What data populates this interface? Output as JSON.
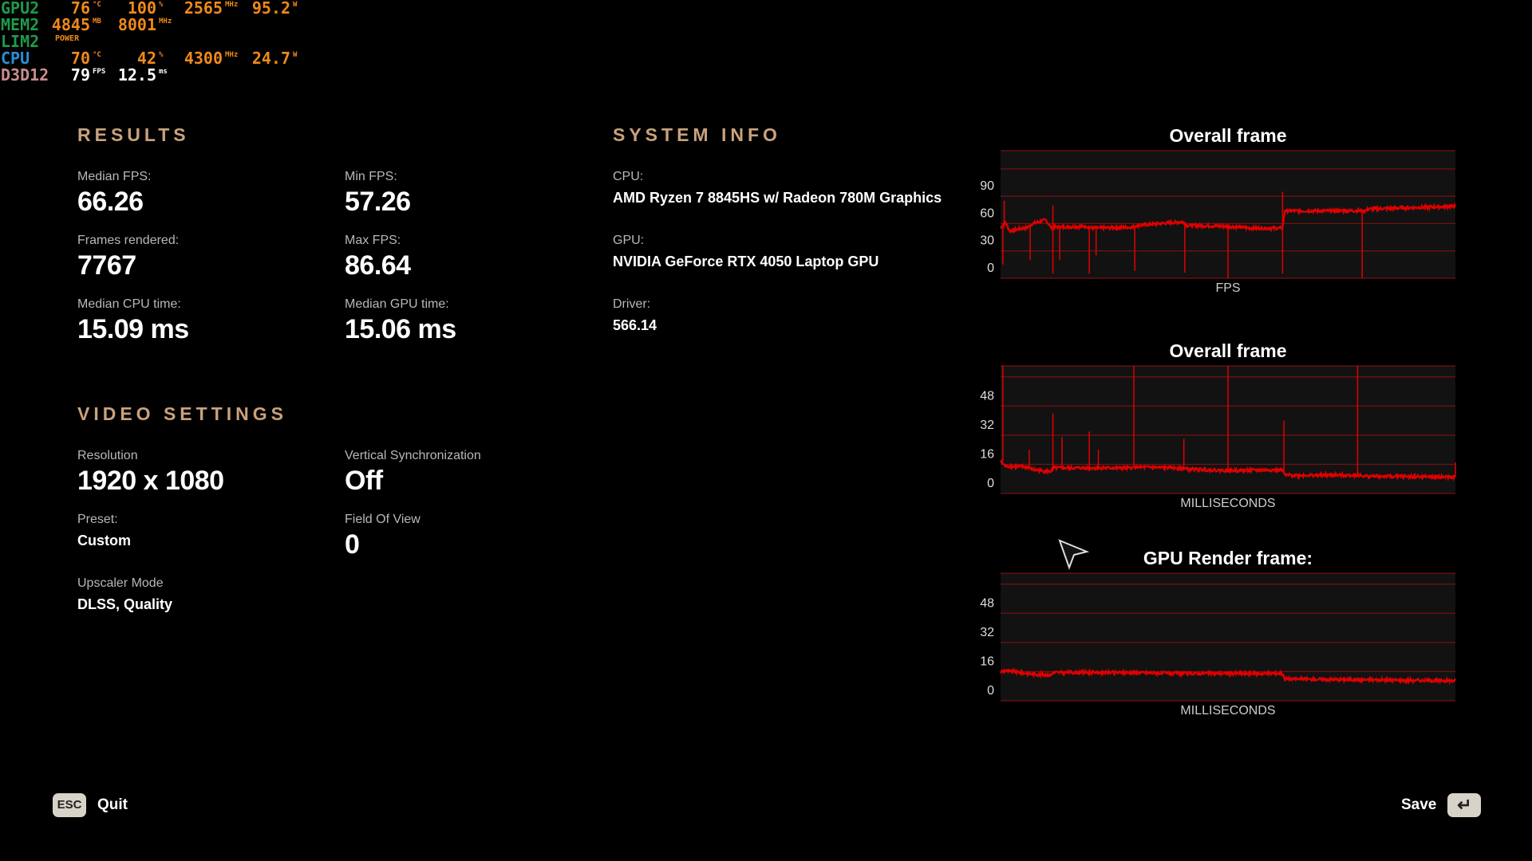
{
  "overlay": {
    "rows": [
      {
        "label": "GPU2",
        "values": [
          {
            "v": "76",
            "u": "°C"
          },
          {
            "v": "100",
            "u": "%"
          },
          {
            "v": "2565",
            "u": "MHz"
          },
          {
            "v": "95.2",
            "u": "W"
          }
        ]
      },
      {
        "label": "MEM2",
        "values": [
          {
            "v": "4845",
            "u": "MB"
          },
          {
            "v": "8001",
            "u": "MHz"
          }
        ]
      },
      {
        "label": "LIM2",
        "values": [
          {
            "v": "POWER",
            "u": ""
          }
        ]
      },
      {
        "label": "CPU",
        "values": [
          {
            "v": "70",
            "u": "°C"
          },
          {
            "v": "42",
            "u": "%"
          },
          {
            "v": "4300",
            "u": "MHz"
          },
          {
            "v": "24.7",
            "u": "W"
          }
        ]
      },
      {
        "label": "D3D12",
        "values": [
          {
            "v": "79",
            "u": "FPS"
          },
          {
            "v": "12.5",
            "u": "ms"
          }
        ]
      }
    ]
  },
  "results": {
    "heading": "RESULTS",
    "median_fps": {
      "label": "Median FPS:",
      "value": "66.26"
    },
    "min_fps": {
      "label": "Min FPS:",
      "value": "57.26"
    },
    "frames_rendered": {
      "label": "Frames rendered:",
      "value": "7767"
    },
    "max_fps": {
      "label": "Max FPS:",
      "value": "86.64"
    },
    "median_cpu": {
      "label": "Median CPU time:",
      "value": "15.09 ms"
    },
    "median_gpu": {
      "label": "Median GPU time:",
      "value": "15.06 ms"
    }
  },
  "system_info": {
    "heading": "SYSTEM INFO",
    "cpu": {
      "label": "CPU:",
      "value": "AMD Ryzen 7 8845HS w/ Radeon 780M Graphics"
    },
    "gpu": {
      "label": "GPU:",
      "value": "NVIDIA GeForce RTX 4050 Laptop GPU"
    },
    "driver": {
      "label": "Driver:",
      "value": "566.14"
    }
  },
  "video_settings": {
    "heading": "VIDEO SETTINGS",
    "resolution": {
      "label": "Resolution",
      "value": "1920 x 1080"
    },
    "vsync": {
      "label": "Vertical Synchronization",
      "value": "Off"
    },
    "preset": {
      "label": "Preset:",
      "value": "Custom"
    },
    "fov": {
      "label": "Field Of View",
      "value": "0"
    },
    "upscaler": {
      "label": "Upscaler Mode",
      "value": "DLSS, Quality"
    }
  },
  "footer": {
    "quit_key": "ESC",
    "quit_label": "Quit",
    "save_label": "Save",
    "save_key": "↵"
  },
  "chart_data": [
    {
      "type": "line",
      "title": "Overall frame",
      "xlabel": "FPS",
      "ylabel": "",
      "ylim": [
        0,
        140
      ],
      "yticks": [
        0,
        30,
        60,
        90
      ],
      "gridlines": [
        0,
        30,
        60,
        90,
        120
      ],
      "grid": true,
      "color": "#e00000",
      "trend": [
        [
          0,
          55
        ],
        [
          1,
          62
        ],
        [
          2,
          52
        ],
        [
          6,
          56
        ],
        [
          7,
          60
        ],
        [
          10,
          64
        ],
        [
          11,
          56
        ],
        [
          19,
          57
        ],
        [
          20,
          55
        ],
        [
          29,
          56
        ],
        [
          30,
          58
        ],
        [
          40,
          62
        ],
        [
          41,
          58
        ],
        [
          50,
          57
        ],
        [
          55,
          55
        ],
        [
          62,
          55
        ],
        [
          62.5,
          74
        ],
        [
          80,
          74
        ],
        [
          81,
          76
        ],
        [
          100,
          79
        ]
      ],
      "spikes": [
        [
          0.5,
          15
        ],
        [
          6.5,
          20
        ],
        [
          11.5,
          5
        ],
        [
          13,
          20
        ],
        [
          19.5,
          5
        ],
        [
          21,
          25
        ],
        [
          29.5,
          8
        ],
        [
          40.5,
          6
        ],
        [
          50,
          0
        ],
        [
          62,
          5
        ],
        [
          79.5,
          0
        ],
        [
          0.8,
          85
        ],
        [
          11.5,
          80
        ],
        [
          62,
          95
        ]
      ]
    },
    {
      "type": "line",
      "title": "Overall frame",
      "xlabel": "MILLISECONDS",
      "ylabel": "",
      "ylim": [
        0,
        70
      ],
      "yticks": [
        0,
        16,
        32,
        48
      ],
      "gridlines": [
        0,
        16,
        32,
        48,
        64
      ],
      "grid": true,
      "color": "#e00000",
      "trend": [
        [
          0,
          18
        ],
        [
          1,
          15
        ],
        [
          6,
          14.5
        ],
        [
          7,
          13
        ],
        [
          11,
          12
        ],
        [
          11.5,
          14
        ],
        [
          29,
          14
        ],
        [
          29.5,
          14.5
        ],
        [
          40,
          14
        ],
        [
          40.5,
          13.5
        ],
        [
          50,
          12.5
        ],
        [
          62,
          13
        ],
        [
          62.5,
          10
        ],
        [
          78.5,
          10
        ],
        [
          80,
          9.5
        ],
        [
          100,
          9
        ]
      ],
      "spikes": [
        [
          0.5,
          70
        ],
        [
          6.3,
          24
        ],
        [
          11.5,
          44
        ],
        [
          13.5,
          31
        ],
        [
          19.5,
          34
        ],
        [
          21.5,
          24
        ],
        [
          29.3,
          70
        ],
        [
          40.3,
          30
        ],
        [
          50,
          70
        ],
        [
          62.3,
          40
        ],
        [
          78.5,
          70
        ],
        [
          100,
          17
        ]
      ]
    },
    {
      "type": "line",
      "title": "GPU Render frame:",
      "xlabel": "MILLISECONDS",
      "ylabel": "",
      "ylim": [
        0,
        70
      ],
      "yticks": [
        0,
        16,
        32,
        48
      ],
      "gridlines": [
        0,
        16,
        32,
        48,
        64
      ],
      "grid": true,
      "color": "#e00000",
      "trend": [
        [
          0,
          16
        ],
        [
          1,
          16.5
        ],
        [
          6,
          15
        ],
        [
          8,
          14.5
        ],
        [
          11,
          14
        ],
        [
          11.5,
          15.5
        ],
        [
          29,
          15.5
        ],
        [
          40,
          15
        ],
        [
          62,
          15
        ],
        [
          62.5,
          12
        ],
        [
          80,
          11.5
        ],
        [
          100,
          11
        ]
      ],
      "spikes": []
    }
  ]
}
